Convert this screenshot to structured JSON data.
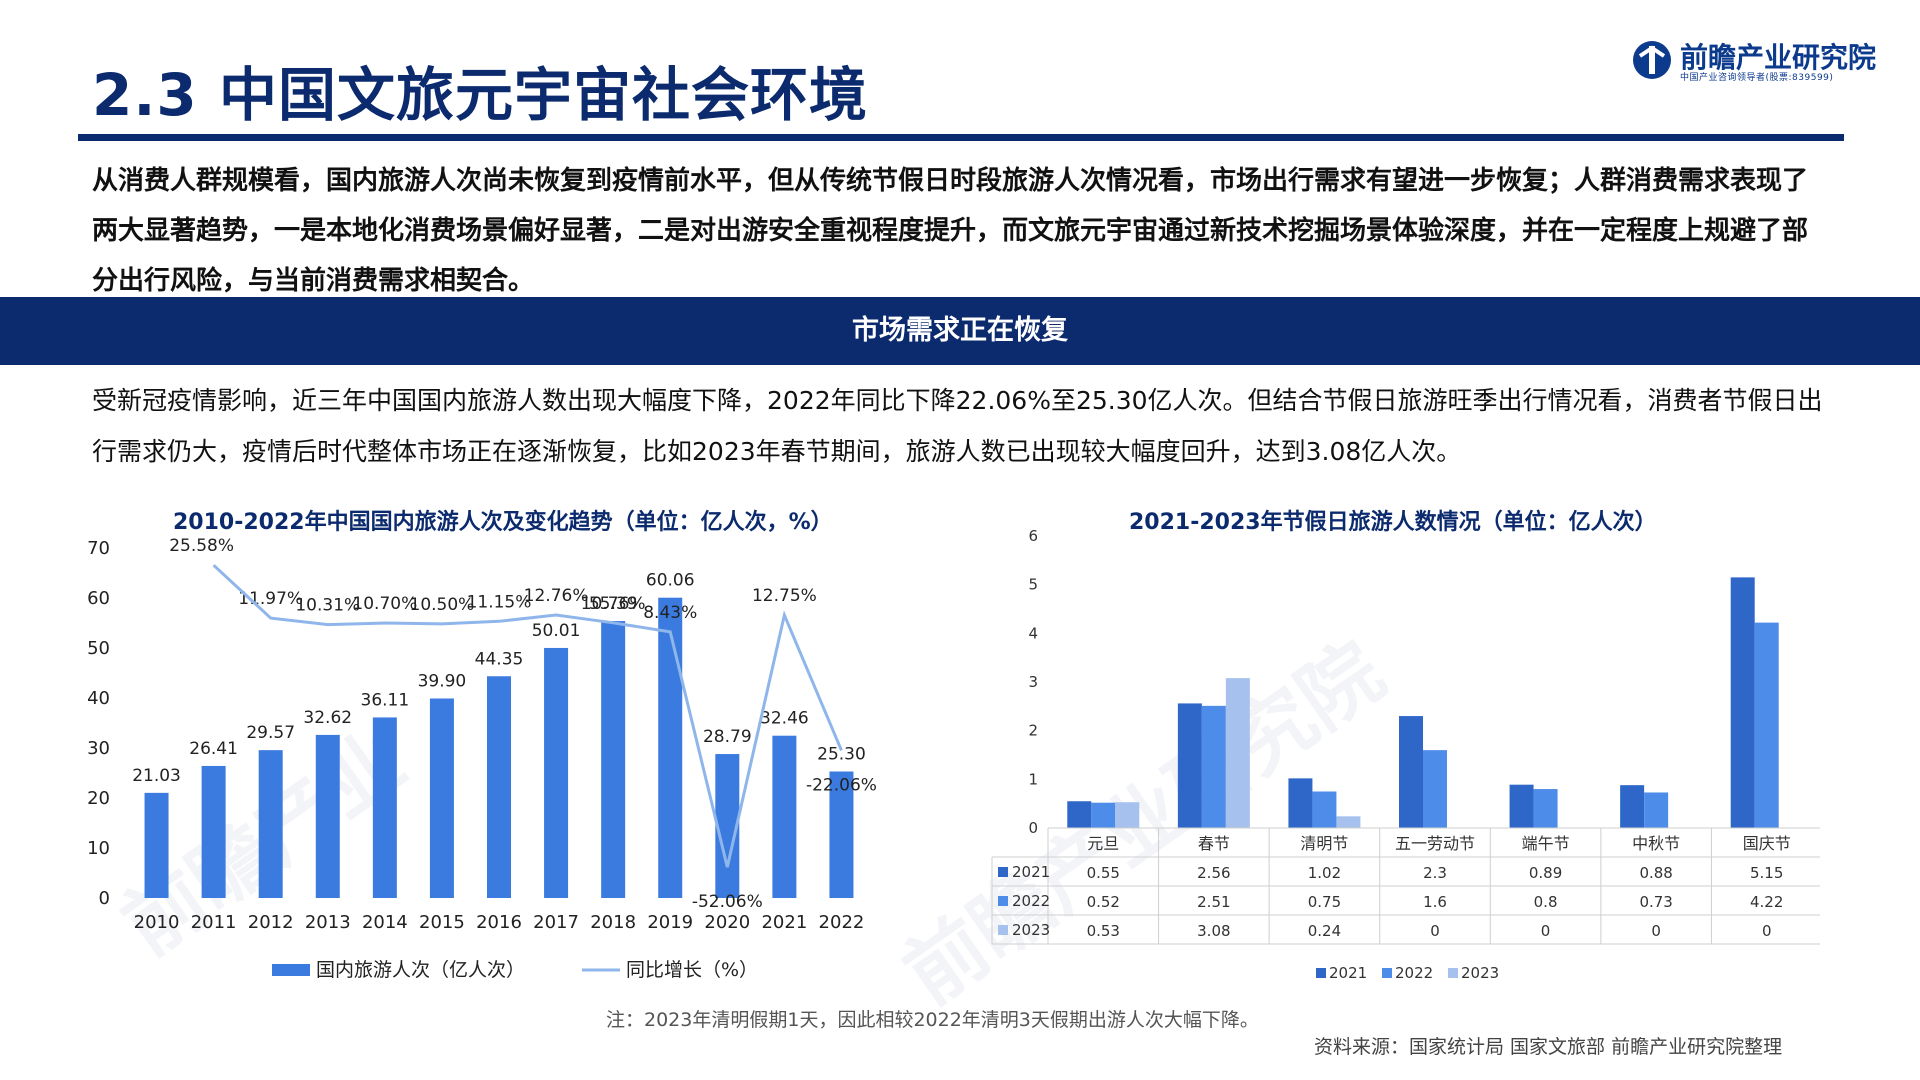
{
  "header": {
    "title": "2.3 中国文旅元宇宙社会环境",
    "logo_name": "前瞻产业研究院",
    "logo_sub": "中国产业咨询领导者(股票:839599)"
  },
  "intro_text": "从消费人群规模看，国内旅游人次尚未恢复到疫情前水平，但从传统节假日时段旅游人次情况看，市场出行需求有望进一步恢复；人群消费需求表现了两大显著趋势，一是本地化消费场景偏好显著，二是对出游安全重视程度提升，而文旅元宇宙通过新技术挖掘场景体验深度，并在一定程度上规避了部分出行风险，与当前消费需求相契合。",
  "banner": "市场需求正在恢复",
  "body_text": "受新冠疫情影响，近三年中国国内旅游人数出现大幅度下降，2022年同比下降22.06%至25.30亿人次。但结合节假日旅游旺季出行情况看，消费者节假日出行需求仍大，疫情后时代整体市场正在逐渐恢复，比如2023年春节期间，旅游人数已出现较大幅度回升，达到3.08亿人次。",
  "footer": {
    "note": "注：2023年清明假期1天，因此相较2022年清明3天假期出游人次大幅下降。",
    "source": "资料来源：国家统计局 国家文旅部 前瞻产业研究院整理"
  },
  "colors": {
    "navy": "#0c2b6e",
    "bar": "#3b7be0",
    "line": "#8fb6ea",
    "s2021": "#2f67c8",
    "s2022": "#4d8ce8",
    "s2023": "#a6c1ee"
  },
  "chart_data": [
    {
      "type": "bar",
      "title": "2010-2022年中国国内旅游人次及变化趋势（单位：亿人次，%）",
      "categories": [
        "2010",
        "2011",
        "2012",
        "2013",
        "2014",
        "2015",
        "2016",
        "2017",
        "2018",
        "2019",
        "2020",
        "2021",
        "2022"
      ],
      "series": [
        {
          "name": "国内旅游人次（亿人次）",
          "type": "bar",
          "axis": "left",
          "values": [
            21.03,
            26.41,
            29.57,
            32.62,
            36.11,
            39.9,
            44.35,
            50.01,
            55.39,
            60.06,
            28.79,
            32.46,
            25.3
          ],
          "labels": [
            "21.03",
            "26.41",
            "29.57",
            "32.62",
            "36.11",
            "39.90",
            "44.35",
            "50.01",
            "55.39",
            "60.06",
            "28.79",
            "32.46",
            "25.30"
          ]
        },
        {
          "name": "同比增长（%）",
          "type": "line",
          "axis": "right",
          "values": [
            null,
            25.58,
            11.97,
            10.31,
            10.7,
            10.5,
            11.15,
            12.76,
            10.76,
            8.43,
            -52.06,
            12.75,
            -22.06
          ],
          "labels": [
            "",
            "25.58%",
            "11.97%",
            "10.31%",
            "10.70%",
            "10.50%",
            "11.15%",
            "12.76%",
            "10.76%",
            "8.43%",
            "-52.06%",
            "12.75%",
            "-22.06%"
          ]
        }
      ],
      "y_left": {
        "ylim": [
          0,
          70
        ],
        "ticks": [
          "0",
          "10",
          "20",
          "30",
          "40",
          "50",
          "60",
          "70"
        ]
      },
      "y_right": {
        "ylim": [
          -60,
          30
        ],
        "ticks": [
          "-60%",
          "-50%",
          "-40%",
          "-30%",
          "-20%",
          "-10%",
          "0%",
          "10%",
          "20%",
          "30%"
        ]
      },
      "legend_position": "bottom"
    },
    {
      "type": "bar",
      "title": "2021-2023年节假日旅游人数情况（单位：亿人次）",
      "categories": [
        "元旦",
        "春节",
        "清明节",
        "五一劳动节",
        "端午节",
        "中秋节",
        "国庆节"
      ],
      "series": [
        {
          "name": "2021",
          "values": [
            0.55,
            2.56,
            1.02,
            2.3,
            0.89,
            0.88,
            5.15
          ],
          "labels": [
            "0.55",
            "2.56",
            "1.02",
            "2.3",
            "0.89",
            "0.88",
            "5.15"
          ]
        },
        {
          "name": "2022",
          "values": [
            0.52,
            2.51,
            0.75,
            1.6,
            0.8,
            0.73,
            4.22
          ],
          "labels": [
            "0.52",
            "2.51",
            "0.75",
            "1.6",
            "0.8",
            "0.73",
            "4.22"
          ]
        },
        {
          "name": "2023",
          "values": [
            0.53,
            3.08,
            0.24,
            0,
            0,
            0,
            0
          ],
          "labels": [
            "0.53",
            "3.08",
            "0.24",
            "0",
            "0",
            "0",
            "0"
          ]
        }
      ],
      "ylim": [
        0,
        6
      ],
      "y_ticks": [
        "0",
        "1",
        "2",
        "3",
        "4",
        "5",
        "6"
      ],
      "data_table": true,
      "legend_position": "bottom"
    }
  ]
}
